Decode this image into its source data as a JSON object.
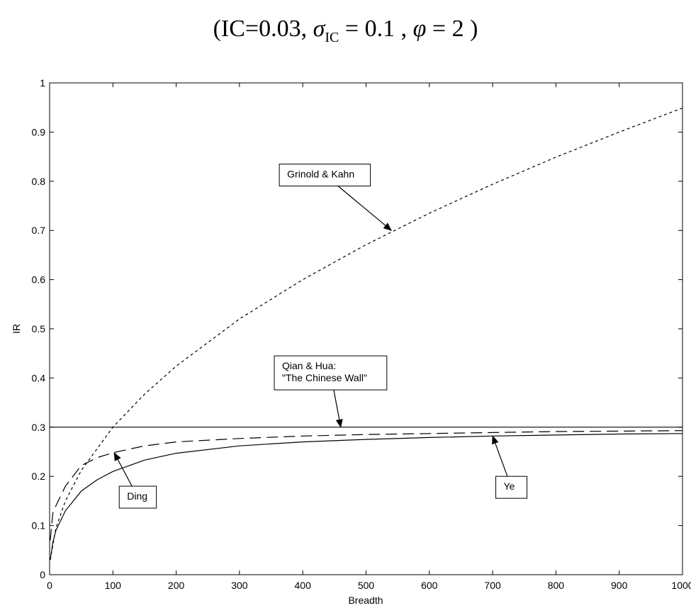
{
  "chart_data": {
    "type": "line",
    "title": {
      "prefix": "(IC=0.03,",
      "sigma_symbol": "σ",
      "sigma_sub": "IC",
      "sigma_value": " = 0.1 ,",
      "phi_symbol": "φ",
      "phi_value": " = 2 )"
    },
    "xlabel": "Breadth",
    "ylabel": "IR",
    "xlim": [
      0,
      1000
    ],
    "ylim": [
      0,
      1
    ],
    "x_ticks": [
      0,
      100,
      200,
      300,
      400,
      500,
      600,
      700,
      800,
      900,
      1000
    ],
    "y_ticks": [
      0,
      0.1,
      0.2,
      0.3,
      0.4,
      0.5,
      0.6,
      0.7,
      0.8,
      0.9,
      1
    ],
    "x_tick_labels": [
      "0",
      "100",
      "200",
      "300",
      "400",
      "500",
      "600",
      "700",
      "800",
      "900",
      "1000"
    ],
    "y_tick_labels": [
      "0",
      "0.1",
      "0.2",
      "0.3",
      "0.4",
      "0.5",
      "0.6",
      "0.7",
      "0.8",
      "0.9",
      "1"
    ],
    "grid": false,
    "legend": "none",
    "series": [
      {
        "id": "grinold-kahn",
        "style": "dotted",
        "x": [
          1,
          10,
          25,
          50,
          100,
          150,
          200,
          300,
          400,
          500,
          600,
          700,
          800,
          900,
          1000
        ],
        "y": [
          0.03,
          0.095,
          0.15,
          0.212,
          0.3,
          0.367,
          0.424,
          0.52,
          0.6,
          0.671,
          0.735,
          0.794,
          0.849,
          0.9,
          0.949
        ]
      },
      {
        "id": "chinese-wall",
        "style": "solid",
        "x": [
          0,
          1000
        ],
        "y": [
          0.3,
          0.3
        ]
      },
      {
        "id": "ding",
        "style": "long-dash",
        "x": [
          1,
          5,
          10,
          25,
          50,
          75,
          100,
          150,
          200,
          300,
          400,
          500,
          600,
          700,
          800,
          900,
          1000
        ],
        "y": [
          0.07,
          0.125,
          0.14,
          0.18,
          0.222,
          0.238,
          0.248,
          0.262,
          0.27,
          0.277,
          0.282,
          0.285,
          0.287,
          0.289,
          0.291,
          0.292,
          0.293
        ]
      },
      {
        "id": "ye",
        "style": "solid",
        "x": [
          1,
          5,
          10,
          25,
          50,
          75,
          100,
          150,
          200,
          300,
          400,
          500,
          600,
          700,
          800,
          900,
          1000
        ],
        "y": [
          0.03,
          0.065,
          0.09,
          0.13,
          0.17,
          0.193,
          0.21,
          0.233,
          0.247,
          0.262,
          0.27,
          0.275,
          0.279,
          0.282,
          0.284,
          0.286,
          0.287
        ]
      }
    ],
    "annotations": [
      {
        "id": "grinold-kahn-label",
        "lines": [
          "Grinold & Kahn"
        ],
        "box_x": 363,
        "box_y": 0.835,
        "arrow_to_x": 540,
        "arrow_to_y": 0.7
      },
      {
        "id": "chinese-wall-label",
        "lines": [
          "Qian & Hua:",
          "\"The Chinese Wall\""
        ],
        "box_x": 355,
        "box_y": 0.445,
        "arrow_to_x": 460,
        "arrow_to_y": 0.3
      },
      {
        "id": "ding-label",
        "lines": [
          "Ding"
        ],
        "box_x": 110,
        "box_y": 0.18,
        "arrow_to_x": 102,
        "arrow_to_y": 0.248
      },
      {
        "id": "ye-label",
        "lines": [
          "Ye"
        ],
        "box_x": 705,
        "box_y": 0.2,
        "arrow_to_x": 700,
        "arrow_to_y": 0.282
      }
    ]
  }
}
